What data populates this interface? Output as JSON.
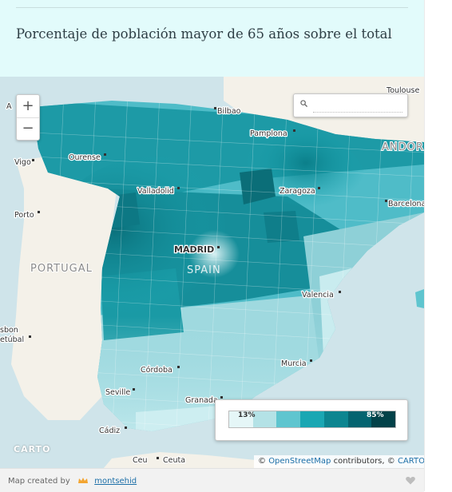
{
  "header": {
    "title": "Porcentaje de población mayor de 65 años sobre el total"
  },
  "map": {
    "zoom_in_label": "+",
    "zoom_out_label": "−",
    "search": {
      "value": "",
      "placeholder": ""
    },
    "labels": {
      "bilbao": "Bilbao",
      "pamplona": "Pamplona",
      "andorra": "ANDORRA",
      "ourense": "Ourense",
      "vigo": "Vigo",
      "valladolid": "Valladolid",
      "zaragoza": "Zaragoza",
      "barcelona": "Barcelona",
      "porto": "Porto",
      "madrid": "MADRID",
      "spain": "SPAIN",
      "portugal": "PORTUGAL",
      "valencia": "Valencia",
      "lisbon": "sbon",
      "setubal": "etúbal",
      "cordoba": "Córdoba",
      "murcia": "Murcia",
      "seville": "Seville",
      "granada": "Granada",
      "cadiz": "Cádiz",
      "ceuta_a": "Ceu",
      "ceuta_b": "Ceuta",
      "toulouse": "Toulouse",
      "a": "A"
    },
    "legend": {
      "min_label": "13%",
      "max_label": "85%",
      "colors": [
        "#e5f6f7",
        "#b4e2e6",
        "#5fc5cf",
        "#1aa7b3",
        "#0c8590",
        "#046470",
        "#024249"
      ]
    },
    "attribution": {
      "prefix": "©",
      "osm": "OpenStreetMap",
      "middle": "contributors, ©",
      "carto": "CARTO"
    },
    "carto_logo": "CARTO",
    "colors": {
      "sea": "#cfe4ea",
      "land": "#f4f1e9",
      "low": "#bfe6ea",
      "mid": "#4fbcc8",
      "high": "#0f8c98",
      "dark": "#075e68"
    }
  },
  "footer": {
    "made_by": "Map created by",
    "user": "montsehid"
  }
}
